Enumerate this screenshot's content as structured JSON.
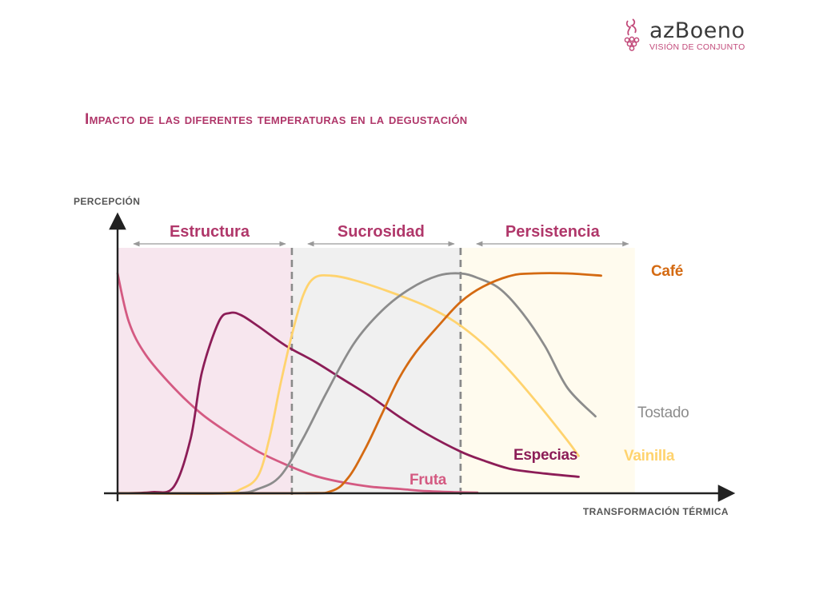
{
  "logo": {
    "wordmark": "azBoeno",
    "tagline": "VISIÓN DE CONJUNTO"
  },
  "title": "Impacto de las diferentes temperaturas en la degustación",
  "colors": {
    "title": "#b0376a",
    "axis": "#222222",
    "zone_estructura": "#f7e6ee",
    "zone_sucrosidad": "#f0f0f0",
    "zone_persistencia": "#fffbee",
    "fruta": "#d45a82",
    "especias": "#8c1d57",
    "vainilla": "#ffd36e",
    "tostado": "#8c8c8c",
    "cafe": "#d46a12"
  },
  "chart_data": {
    "type": "line",
    "title": "Impacto de las diferentes temperaturas en la degustación",
    "xlabel": "TRANSFORMACIÓN TÉRMICA",
    "ylabel": "PERCEPCIÓN",
    "xlim": [
      0,
      100
    ],
    "ylim": [
      0,
      100
    ],
    "ticks": "none",
    "grid": false,
    "zones": [
      {
        "name": "Estructura",
        "x": [
          0,
          31
        ],
        "color": "#f7e6ee"
      },
      {
        "name": "Sucrosidad",
        "x": [
          31,
          61
        ],
        "color": "#f0f0f0"
      },
      {
        "name": "Persistencia",
        "x": [
          61,
          92
        ],
        "color": "#fffbee"
      }
    ],
    "series": [
      {
        "name": "Fruta",
        "color": "#d45a82",
        "points": [
          [
            0,
            100
          ],
          [
            2,
            78
          ],
          [
            5,
            63
          ],
          [
            10,
            48
          ],
          [
            15,
            36
          ],
          [
            20,
            27
          ],
          [
            25,
            19
          ],
          [
            30,
            13
          ],
          [
            35,
            8
          ],
          [
            40,
            5
          ],
          [
            45,
            3
          ],
          [
            50,
            2
          ],
          [
            55,
            1
          ],
          [
            60,
            0.5
          ],
          [
            64,
            0.3
          ]
        ]
      },
      {
        "name": "Especias",
        "color": "#8c1d57",
        "points": [
          [
            0,
            0
          ],
          [
            6,
            0.5
          ],
          [
            10,
            3
          ],
          [
            13,
            25
          ],
          [
            15,
            55
          ],
          [
            18,
            78
          ],
          [
            20,
            82
          ],
          [
            22,
            81
          ],
          [
            25,
            76
          ],
          [
            30,
            67
          ],
          [
            35,
            60
          ],
          [
            40,
            52
          ],
          [
            45,
            44
          ],
          [
            50,
            35
          ],
          [
            55,
            27
          ],
          [
            61,
            19
          ],
          [
            65,
            15
          ],
          [
            70,
            11
          ],
          [
            76,
            9
          ],
          [
            82,
            7.5
          ]
        ]
      },
      {
        "name": "Vainilla",
        "color": "#ffd36e",
        "points": [
          [
            0,
            0
          ],
          [
            18,
            0
          ],
          [
            22,
            2
          ],
          [
            25,
            8
          ],
          [
            27,
            25
          ],
          [
            29,
            50
          ],
          [
            31,
            72
          ],
          [
            33,
            90
          ],
          [
            35,
            98
          ],
          [
            38,
            99
          ],
          [
            42,
            97
          ],
          [
            48,
            92
          ],
          [
            55,
            85
          ],
          [
            60,
            78
          ],
          [
            65,
            68
          ],
          [
            70,
            55
          ],
          [
            75,
            40
          ],
          [
            80,
            24
          ],
          [
            82,
            17
          ]
        ]
      },
      {
        "name": "Tostado",
        "color": "#8c8c8c",
        "points": [
          [
            0,
            0
          ],
          [
            20,
            0
          ],
          [
            25,
            2
          ],
          [
            29,
            8
          ],
          [
            33,
            25
          ],
          [
            37,
            45
          ],
          [
            42,
            68
          ],
          [
            47,
            83
          ],
          [
            52,
            93
          ],
          [
            57,
            99
          ],
          [
            61,
            100
          ],
          [
            64,
            98
          ],
          [
            68,
            93
          ],
          [
            72,
            82
          ],
          [
            76,
            67
          ],
          [
            80,
            48
          ],
          [
            85,
            35
          ]
        ]
      },
      {
        "name": "Café",
        "color": "#d46a12",
        "points": [
          [
            0,
            0
          ],
          [
            32,
            0
          ],
          [
            38,
            1
          ],
          [
            41,
            7
          ],
          [
            44,
            20
          ],
          [
            47,
            36
          ],
          [
            50,
            52
          ],
          [
            53,
            64
          ],
          [
            57,
            76
          ],
          [
            61,
            87
          ],
          [
            65,
            94
          ],
          [
            70,
            99
          ],
          [
            74,
            100
          ],
          [
            80,
            100
          ],
          [
            86,
            99
          ]
        ]
      }
    ]
  }
}
